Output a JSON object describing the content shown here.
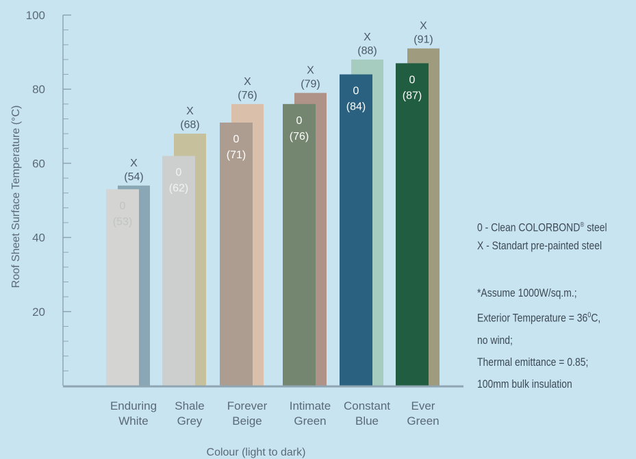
{
  "chart_data": {
    "type": "bar",
    "xlabel": "Colour (light to dark)",
    "ylabel": "Roof Sheet Surface Temperature (°C)",
    "ylim": [
      0,
      100
    ],
    "yticks": [
      20,
      40,
      60,
      80,
      100
    ],
    "categories": [
      {
        "line1": "Enduring",
        "line2": "White"
      },
      {
        "line1": "Shale",
        "line2": "Grey"
      },
      {
        "line1": "Forever",
        "line2": "Beige"
      },
      {
        "line1": "Intimate",
        "line2": "Green"
      },
      {
        "line1": "Constant",
        "line2": "Blue"
      },
      {
        "line1": "Ever",
        "line2": "Green"
      }
    ],
    "series": [
      {
        "marker": "0",
        "values": [
          53,
          62,
          71,
          76,
          84,
          87
        ],
        "labels": [
          "(53)",
          "(62)",
          "(71)",
          "(76)",
          "(84)",
          "(87)"
        ],
        "colors": [
          "#d4d4d2",
          "#cdcfcf",
          "#ad9d91",
          "#748570",
          "#2b6180",
          "#215d40"
        ],
        "label_colors": [
          "#c1c4c4",
          "#f2f2f2",
          "#ffffff",
          "#ffffff",
          "#ffffff",
          "#ffffff"
        ]
      },
      {
        "marker": "X",
        "values": [
          54,
          68,
          76,
          79,
          88,
          91
        ],
        "labels": [
          "(54)",
          "(68)",
          "(76)",
          "(79)",
          "(88)",
          "(91)"
        ],
        "colors": [
          "#8aa7b6",
          "#c6c09c",
          "#dac0ab",
          "#b09388",
          "#a6cbbf",
          "#9e9b7f"
        ],
        "label_colors": [
          "#4a5a66",
          "#4a5a66",
          "#4a5a66",
          "#4a5a66",
          "#4a5a66",
          "#4a5a66"
        ]
      }
    ]
  },
  "legend": {
    "line1_prefix": "0 -  Clean COLORBOND",
    "line1_reg": "®",
    "line1_suffix": " steel",
    "line2": "X - Standart pre-painted steel"
  },
  "notes": {
    "line1": "*Assume 1000W/sq.m.;",
    "line2_prefix": "Exterior Temperature = 36",
    "line2_sup": "0",
    "line2_suffix": "C,",
    "line3": "no wind;",
    "line4": "Thermal emittance = 0.85;",
    "line5": "100mm bulk insulation"
  }
}
